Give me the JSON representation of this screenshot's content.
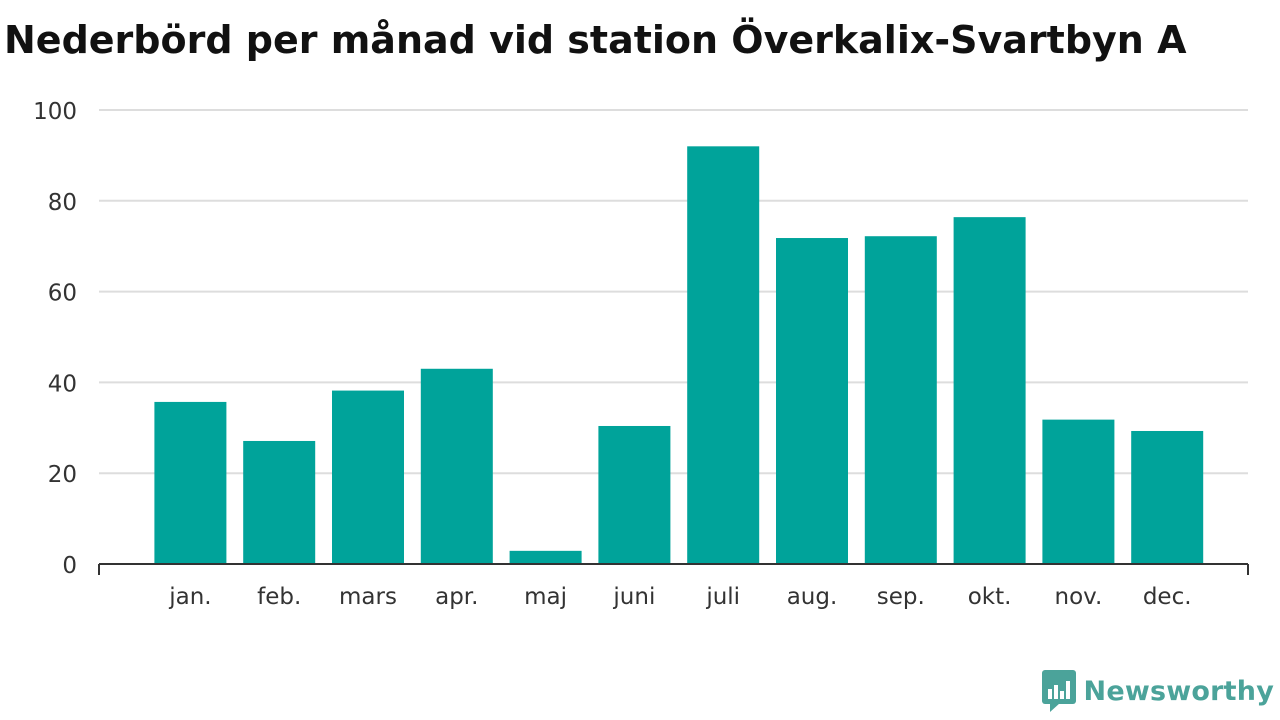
{
  "chart_data": {
    "type": "bar",
    "title": "Nederbörd per månad vid station Överkalix-Svartbyn A",
    "xlabel": "",
    "ylabel": "",
    "categories": [
      "jan.",
      "feb.",
      "mars",
      "apr.",
      "maj",
      "juni",
      "juli",
      "aug.",
      "sep.",
      "okt.",
      "nov.",
      "dec."
    ],
    "values": [
      35.7,
      27.1,
      38.2,
      43.0,
      2.9,
      30.4,
      92.0,
      71.8,
      72.2,
      76.4,
      31.8,
      29.3
    ],
    "ylim": [
      0,
      100
    ],
    "yticks": [
      0,
      20,
      40,
      60,
      80,
      100
    ],
    "grid": true,
    "legend": "none",
    "bar_color": "#00a39a",
    "grid_color": "#dddddd"
  },
  "branding": {
    "name": "Newsworthy",
    "icon": "newsworthy-logo-icon",
    "color": "#4ba39a"
  }
}
